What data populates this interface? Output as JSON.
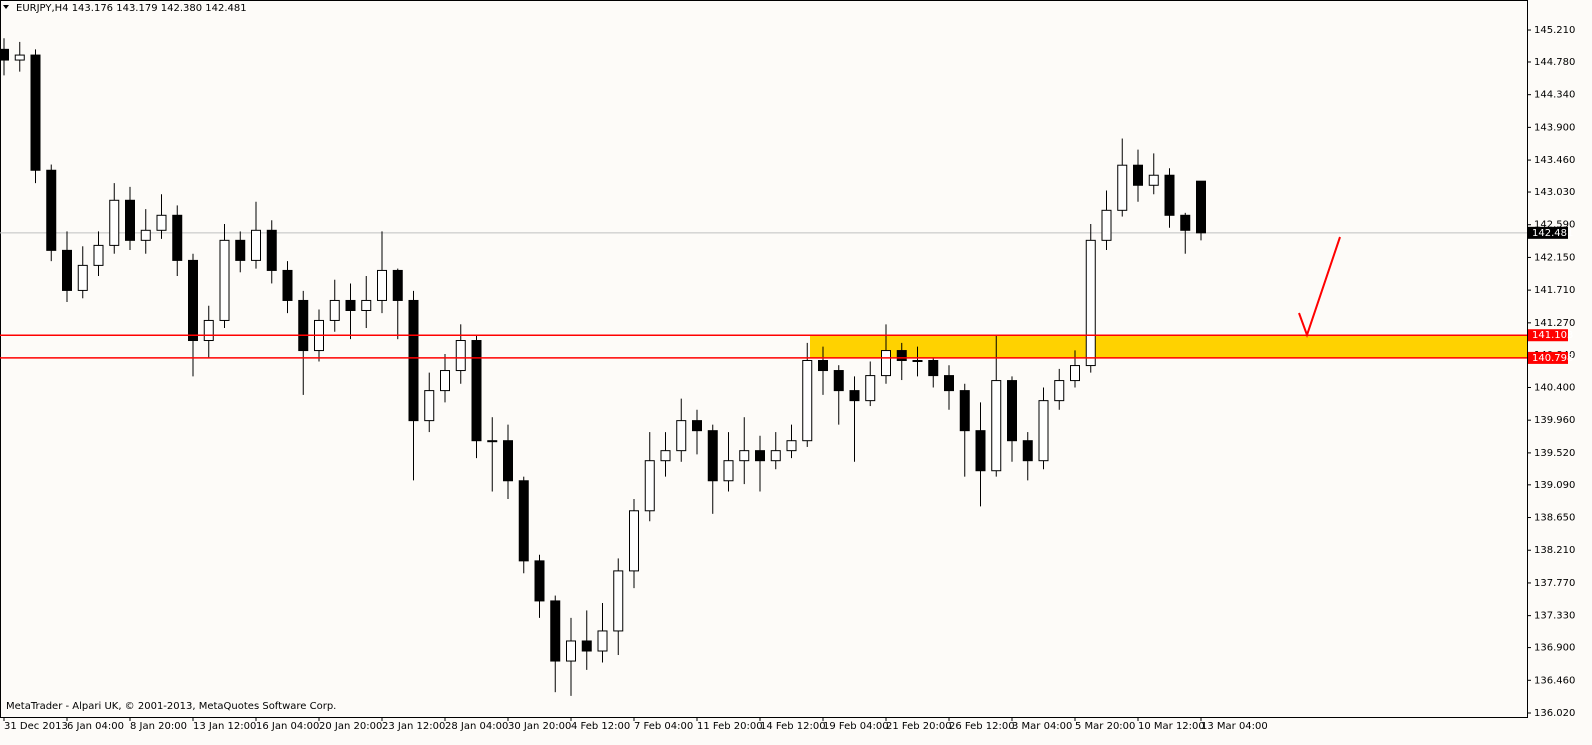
{
  "chart_data": {
    "type": "candlestick",
    "header": "EURJPY,H4  143.176 143.179 142.380 142.481",
    "footer": "MetaTrader - Alpari UK, © 2001-2013, MetaQuotes Software Corp.",
    "categories": [
      "31 Dec 2013",
      null,
      null,
      null,
      "6 Jan 04:00",
      null,
      null,
      null,
      "8 Jan 20:00",
      null,
      null,
      null,
      "13 Jan 12:00",
      null,
      null,
      null,
      "16 Jan 04:00",
      null,
      null,
      null,
      "20 Jan 20:00",
      null,
      null,
      null,
      "23 Jan 12:00",
      null,
      null,
      null,
      "28 Jan 04:00",
      null,
      null,
      null,
      "30 Jan 20:00",
      null,
      null,
      null,
      "4 Feb 12:00",
      null,
      null,
      null,
      "7 Feb 04:00",
      null,
      null,
      null,
      "11 Feb 20:00",
      null,
      null,
      null,
      "14 Feb 12:00",
      null,
      null,
      null,
      "19 Feb 04:00",
      null,
      null,
      null,
      "21 Feb 20:00",
      null,
      null,
      null,
      "26 Feb 12:00",
      null,
      null,
      null,
      "3 Mar 04:00",
      null,
      null,
      null,
      "5 Mar 20:00",
      null,
      null,
      null,
      "10 Mar 12:00",
      null,
      null,
      null,
      "13 Mar 04:00"
    ],
    "candles": {
      "open": [
        144.95,
        144.806,
        144.873,
        143.323,
        142.245,
        141.706,
        142.043,
        142.312,
        142.919,
        142.38,
        142.515,
        142.717,
        142.11,
        141.032,
        141.302,
        142.38,
        142.11,
        142.515,
        141.975,
        141.571,
        140.897,
        141.302,
        141.571,
        141.436,
        141.571,
        141.975,
        141.571,
        139.954,
        140.358,
        140.628,
        141.032,
        139.684,
        139.684,
        139.145,
        138.067,
        137.528,
        136.719,
        136.989,
        136.854,
        137.124,
        137.932,
        138.741,
        139.415,
        139.55,
        139.954,
        139.819,
        139.145,
        139.415,
        139.55,
        139.415,
        139.55,
        139.684,
        140.763,
        140.628,
        140.358,
        140.223,
        140.56,
        140.897,
        140.763,
        140.763,
        140.56,
        140.358,
        139.819,
        139.28,
        140.493,
        139.684,
        139.415,
        140.223,
        140.493,
        140.695,
        142.38,
        142.784,
        143.391,
        143.121,
        143.256,
        142.717,
        143.176
      ],
      "high": [
        145.1,
        145.05,
        144.95,
        143.4,
        142.5,
        142.3,
        142.5,
        143.15,
        143.1,
        142.8,
        143.0,
        142.85,
        142.2,
        141.5,
        142.6,
        142.5,
        142.9,
        142.65,
        142.1,
        141.7,
        141.45,
        141.85,
        141.8,
        141.9,
        142.5,
        142.0,
        141.7,
        140.6,
        140.85,
        141.25,
        141.1,
        140.0,
        139.9,
        139.2,
        138.15,
        137.6,
        137.3,
        137.4,
        137.5,
        138.1,
        138.9,
        139.8,
        139.8,
        140.25,
        140.1,
        139.9,
        139.8,
        140.0,
        139.75,
        139.8,
        139.9,
        141.0,
        140.95,
        140.7,
        140.55,
        140.75,
        141.25,
        141.0,
        140.95,
        140.8,
        140.7,
        140.45,
        140.2,
        141.1,
        140.55,
        139.8,
        140.4,
        140.65,
        140.9,
        142.6,
        143.05,
        143.75,
        143.6,
        143.55,
        143.35,
        142.75,
        143.179
      ],
      "low": [
        144.6,
        144.65,
        143.15,
        142.1,
        141.55,
        141.6,
        141.9,
        142.2,
        142.25,
        142.2,
        142.4,
        141.9,
        140.55,
        140.8,
        141.2,
        141.95,
        142.0,
        141.8,
        141.4,
        140.3,
        140.75,
        141.15,
        141.05,
        141.2,
        141.4,
        141.05,
        139.15,
        139.8,
        140.2,
        140.45,
        139.45,
        139.0,
        138.9,
        137.9,
        137.3,
        136.3,
        136.25,
        136.6,
        136.7,
        136.8,
        137.7,
        138.6,
        139.2,
        139.4,
        139.5,
        138.7,
        139.0,
        139.1,
        139.0,
        139.3,
        139.45,
        139.6,
        140.3,
        139.9,
        139.4,
        140.15,
        140.45,
        140.5,
        140.55,
        140.4,
        140.1,
        139.2,
        138.8,
        139.2,
        139.4,
        139.15,
        139.3,
        140.1,
        140.4,
        140.6,
        142.25,
        142.7,
        142.9,
        143.0,
        142.55,
        142.2,
        142.38
      ],
      "close": [
        144.806,
        144.873,
        143.323,
        142.245,
        141.706,
        142.043,
        142.312,
        142.919,
        142.38,
        142.515,
        142.717,
        142.11,
        141.032,
        141.302,
        142.38,
        142.11,
        142.515,
        141.975,
        141.571,
        140.897,
        141.302,
        141.571,
        141.436,
        141.571,
        141.975,
        141.571,
        139.954,
        140.358,
        140.628,
        141.032,
        139.684,
        139.684,
        139.145,
        138.067,
        137.528,
        136.719,
        136.989,
        136.854,
        137.124,
        137.932,
        138.741,
        139.415,
        139.55,
        139.954,
        139.819,
        139.145,
        139.415,
        139.55,
        139.415,
        139.55,
        139.684,
        140.763,
        140.628,
        140.358,
        140.223,
        140.56,
        140.897,
        140.763,
        140.763,
        140.56,
        140.358,
        139.819,
        139.28,
        140.493,
        139.684,
        139.415,
        140.223,
        140.493,
        140.695,
        142.38,
        142.784,
        143.391,
        143.121,
        143.256,
        142.717,
        142.515,
        142.481
      ]
    },
    "ylim": [
      135.966,
      145.614
    ],
    "yticks": [
      {
        "value": 145.21,
        "label": "145.210"
      },
      {
        "value": 144.78,
        "label": "144.780"
      },
      {
        "value": 144.34,
        "label": "144.340"
      },
      {
        "value": 143.9,
        "label": "143.900"
      },
      {
        "value": 143.46,
        "label": "143.460"
      },
      {
        "value": 143.03,
        "label": "143.030"
      },
      {
        "value": 142.59,
        "label": "142.590"
      },
      {
        "value": 142.15,
        "label": "142.150"
      },
      {
        "value": 141.71,
        "label": "141.710"
      },
      {
        "value": 141.27,
        "label": "141.270"
      },
      {
        "value": 140.84,
        "label": "140.840"
      },
      {
        "value": 140.4,
        "label": "140.400"
      },
      {
        "value": 139.96,
        "label": "139.960"
      },
      {
        "value": 139.52,
        "label": "139.520"
      },
      {
        "value": 139.09,
        "label": "139.090"
      },
      {
        "value": 138.65,
        "label": "138.650"
      },
      {
        "value": 138.21,
        "label": "138.210"
      },
      {
        "value": 137.77,
        "label": "137.770"
      },
      {
        "value": 137.33,
        "label": "137.330"
      },
      {
        "value": 136.9,
        "label": "136.900"
      },
      {
        "value": 136.46,
        "label": "136.460"
      },
      {
        "value": 136.02,
        "label": "136.020"
      }
    ],
    "levels": [
      141.103,
      140.798
    ],
    "level_color": "#ff0000",
    "zone_color": "#ffd200",
    "bull_color": "#ffffff",
    "bear_color": "#000000"
  }
}
